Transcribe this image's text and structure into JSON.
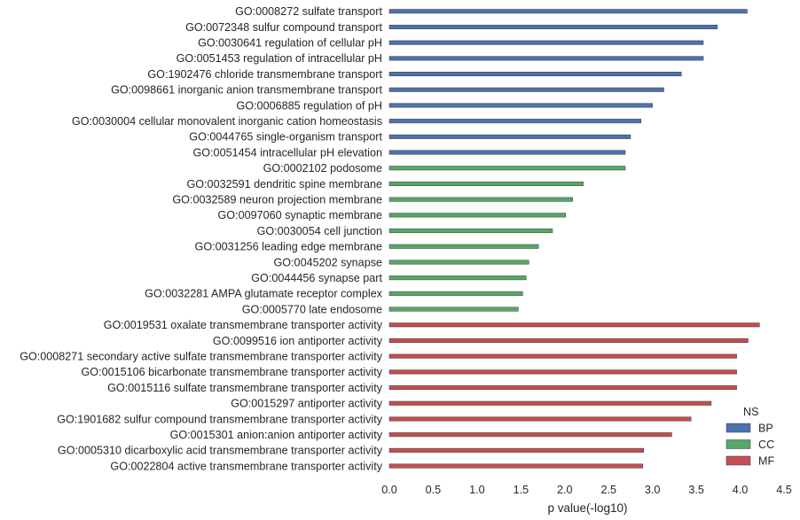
{
  "chart_data": {
    "type": "bar",
    "orientation": "horizontal",
    "xlabel": "p value(-log10)",
    "ylabel": "",
    "xlim": [
      0,
      4.5
    ],
    "x_ticks": [
      "0.0",
      "0.5",
      "1.0",
      "1.5",
      "2.0",
      "2.5",
      "3.0",
      "3.5",
      "4.0",
      "4.5"
    ],
    "grid": false,
    "legend": {
      "title": "NS",
      "placement": "lower-right",
      "entries": [
        {
          "name": "BP",
          "color": "#4c72b0"
        },
        {
          "name": "CC",
          "color": "#55a868"
        },
        {
          "name": "MF",
          "color": "#c44e52"
        }
      ]
    },
    "categories": [
      "GO:0008272 sulfate transport",
      "GO:0072348 sulfur compound transport",
      "GO:0030641 regulation of cellular pH",
      "GO:0051453 regulation of intracellular pH",
      "GO:1902476 chloride transmembrane transport",
      "GO:0098661 inorganic anion transmembrane transport",
      "GO:0006885 regulation of pH",
      "GO:0030004 cellular monovalent inorganic cation homeostasis",
      "GO:0044765 single-organism transport",
      "GO:0051454 intracellular pH elevation",
      "GO:0002102 podosome",
      "GO:0032591 dendritic spine membrane",
      "GO:0032589 neuron projection membrane",
      "GO:0097060 synaptic membrane",
      "GO:0030054 cell junction",
      "GO:0031256 leading edge membrane",
      "GO:0045202 synapse",
      "GO:0044456 synapse part",
      "GO:0032281 AMPA glutamate receptor complex",
      "GO:0005770 late endosome",
      "GO:0019531 oxalate transmembrane transporter activity",
      "GO:0099516 ion antiporter activity",
      "GO:0008271 secondary active sulfate transmembrane transporter activity",
      "GO:0015106 bicarbonate transmembrane transporter activity",
      "GO:0015116 sulfate transmembrane transporter activity",
      "GO:0015297 antiporter activity",
      "GO:1901682 sulfur compound transmembrane transporter activity",
      "GO:0015301 anion:anion antiporter activity",
      "GO:0005310 dicarboxylic acid transmembrane transporter activity",
      "GO:0022804 active transmembrane transporter activity"
    ],
    "groups": [
      "BP",
      "BP",
      "BP",
      "BP",
      "BP",
      "BP",
      "BP",
      "BP",
      "BP",
      "BP",
      "CC",
      "CC",
      "CC",
      "CC",
      "CC",
      "CC",
      "CC",
      "CC",
      "CC",
      "CC",
      "MF",
      "MF",
      "MF",
      "MF",
      "MF",
      "MF",
      "MF",
      "MF",
      "MF",
      "MF"
    ],
    "values": [
      4.08,
      3.74,
      3.58,
      3.58,
      3.33,
      3.13,
      3.0,
      2.87,
      2.75,
      2.69,
      2.69,
      2.21,
      2.09,
      2.01,
      1.86,
      1.7,
      1.59,
      1.56,
      1.52,
      1.47,
      4.22,
      4.09,
      3.96,
      3.96,
      3.96,
      3.67,
      3.44,
      3.22,
      2.9,
      2.89
    ]
  }
}
